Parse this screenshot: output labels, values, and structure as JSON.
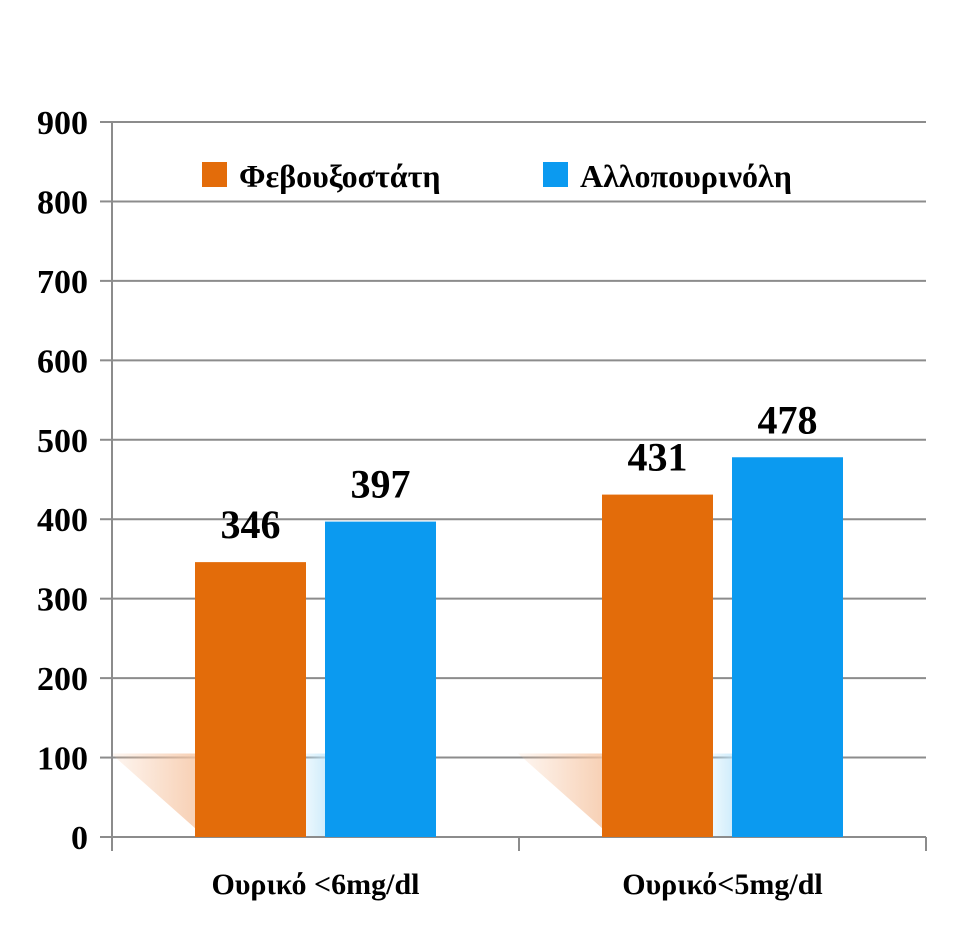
{
  "chart_data": {
    "type": "bar",
    "categories": [
      "Ουρικό <6mg/dl",
      "Ουρικό<5mg/dl"
    ],
    "series": [
      {
        "name": "Φεβουξοστάτη",
        "values": [
          346,
          431
        ],
        "color": "#E36C0A"
      },
      {
        "name": "Αλλοπουρινόλη",
        "values": [
          397,
          478
        ],
        "color": "#0B9AF0"
      }
    ],
    "ylim": [
      0,
      900
    ],
    "yticks": [
      0,
      100,
      200,
      300,
      400,
      500,
      600,
      700,
      800,
      900
    ],
    "grid": true,
    "legend_position": "top",
    "data_labels": true,
    "title": "",
    "xlabel": "",
    "ylabel": ""
  }
}
